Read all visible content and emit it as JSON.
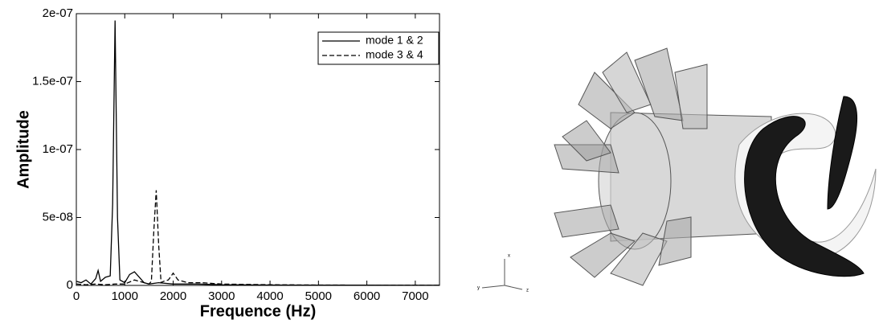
{
  "chart_data": {
    "type": "line",
    "ylabel": "Amplitude",
    "xlabel": "Frequence (Hz)",
    "xlim": [
      0,
      7500
    ],
    "xticks": [
      0,
      1000,
      2000,
      3000,
      4000,
      5000,
      6000,
      7000
    ],
    "ylim": [
      0,
      2e-07
    ],
    "yticks": [
      0,
      {
        "value": 5e-08,
        "label": "5e-08"
      },
      {
        "value": 1e-07,
        "label": "1e-07"
      },
      {
        "value": 1.5e-07,
        "label": "1.5e-07"
      },
      {
        "value": 2e-07,
        "label": "2e-07"
      }
    ],
    "legend": "upper right",
    "series": [
      {
        "name": "mode 1 & 2",
        "color": "#000000",
        "dash": "solid",
        "x": [
          0,
          100,
          200,
          300,
          400,
          450,
          500,
          600,
          700,
          750,
          800,
          850,
          900,
          1000,
          1100,
          1200,
          1300,
          1400,
          1500,
          1700,
          2000,
          2500,
          3000,
          4000,
          5000,
          6000,
          7000,
          7500
        ],
        "values": [
          3e-09,
          2e-09,
          4e-09,
          1e-09,
          5e-09,
          1.1e-08,
          3e-09,
          6e-09,
          7e-09,
          6e-08,
          1.95e-07,
          5e-08,
          4e-09,
          2e-09,
          8e-09,
          1e-08,
          6e-09,
          2e-09,
          1e-09,
          2e-09,
          1e-09,
          1e-09,
          5e-10,
          3e-10,
          2e-10,
          2e-10,
          1e-10,
          1e-10
        ]
      },
      {
        "name": "mode 3 & 4",
        "color": "#000000",
        "dash": "dashed",
        "x": [
          0,
          200,
          400,
          600,
          800,
          1000,
          1200,
          1400,
          1500,
          1550,
          1600,
          1650,
          1700,
          1750,
          1800,
          1900,
          2000,
          2100,
          2300,
          2600,
          3000,
          4000,
          5000,
          6000,
          7000,
          7500
        ],
        "values": [
          1e-09,
          5e-10,
          1e-09,
          5e-10,
          1e-09,
          1e-09,
          4e-09,
          2e-09,
          1e-09,
          3e-09,
          4e-08,
          7e-08,
          3e-08,
          2e-09,
          3e-09,
          4e-09,
          9e-09,
          4e-09,
          2e-09,
          2e-09,
          1e-09,
          5e-10,
          3e-10,
          2e-10,
          2e-10,
          1e-10
        ]
      }
    ]
  },
  "render_axis_labels": [
    "x",
    "y",
    "z"
  ]
}
